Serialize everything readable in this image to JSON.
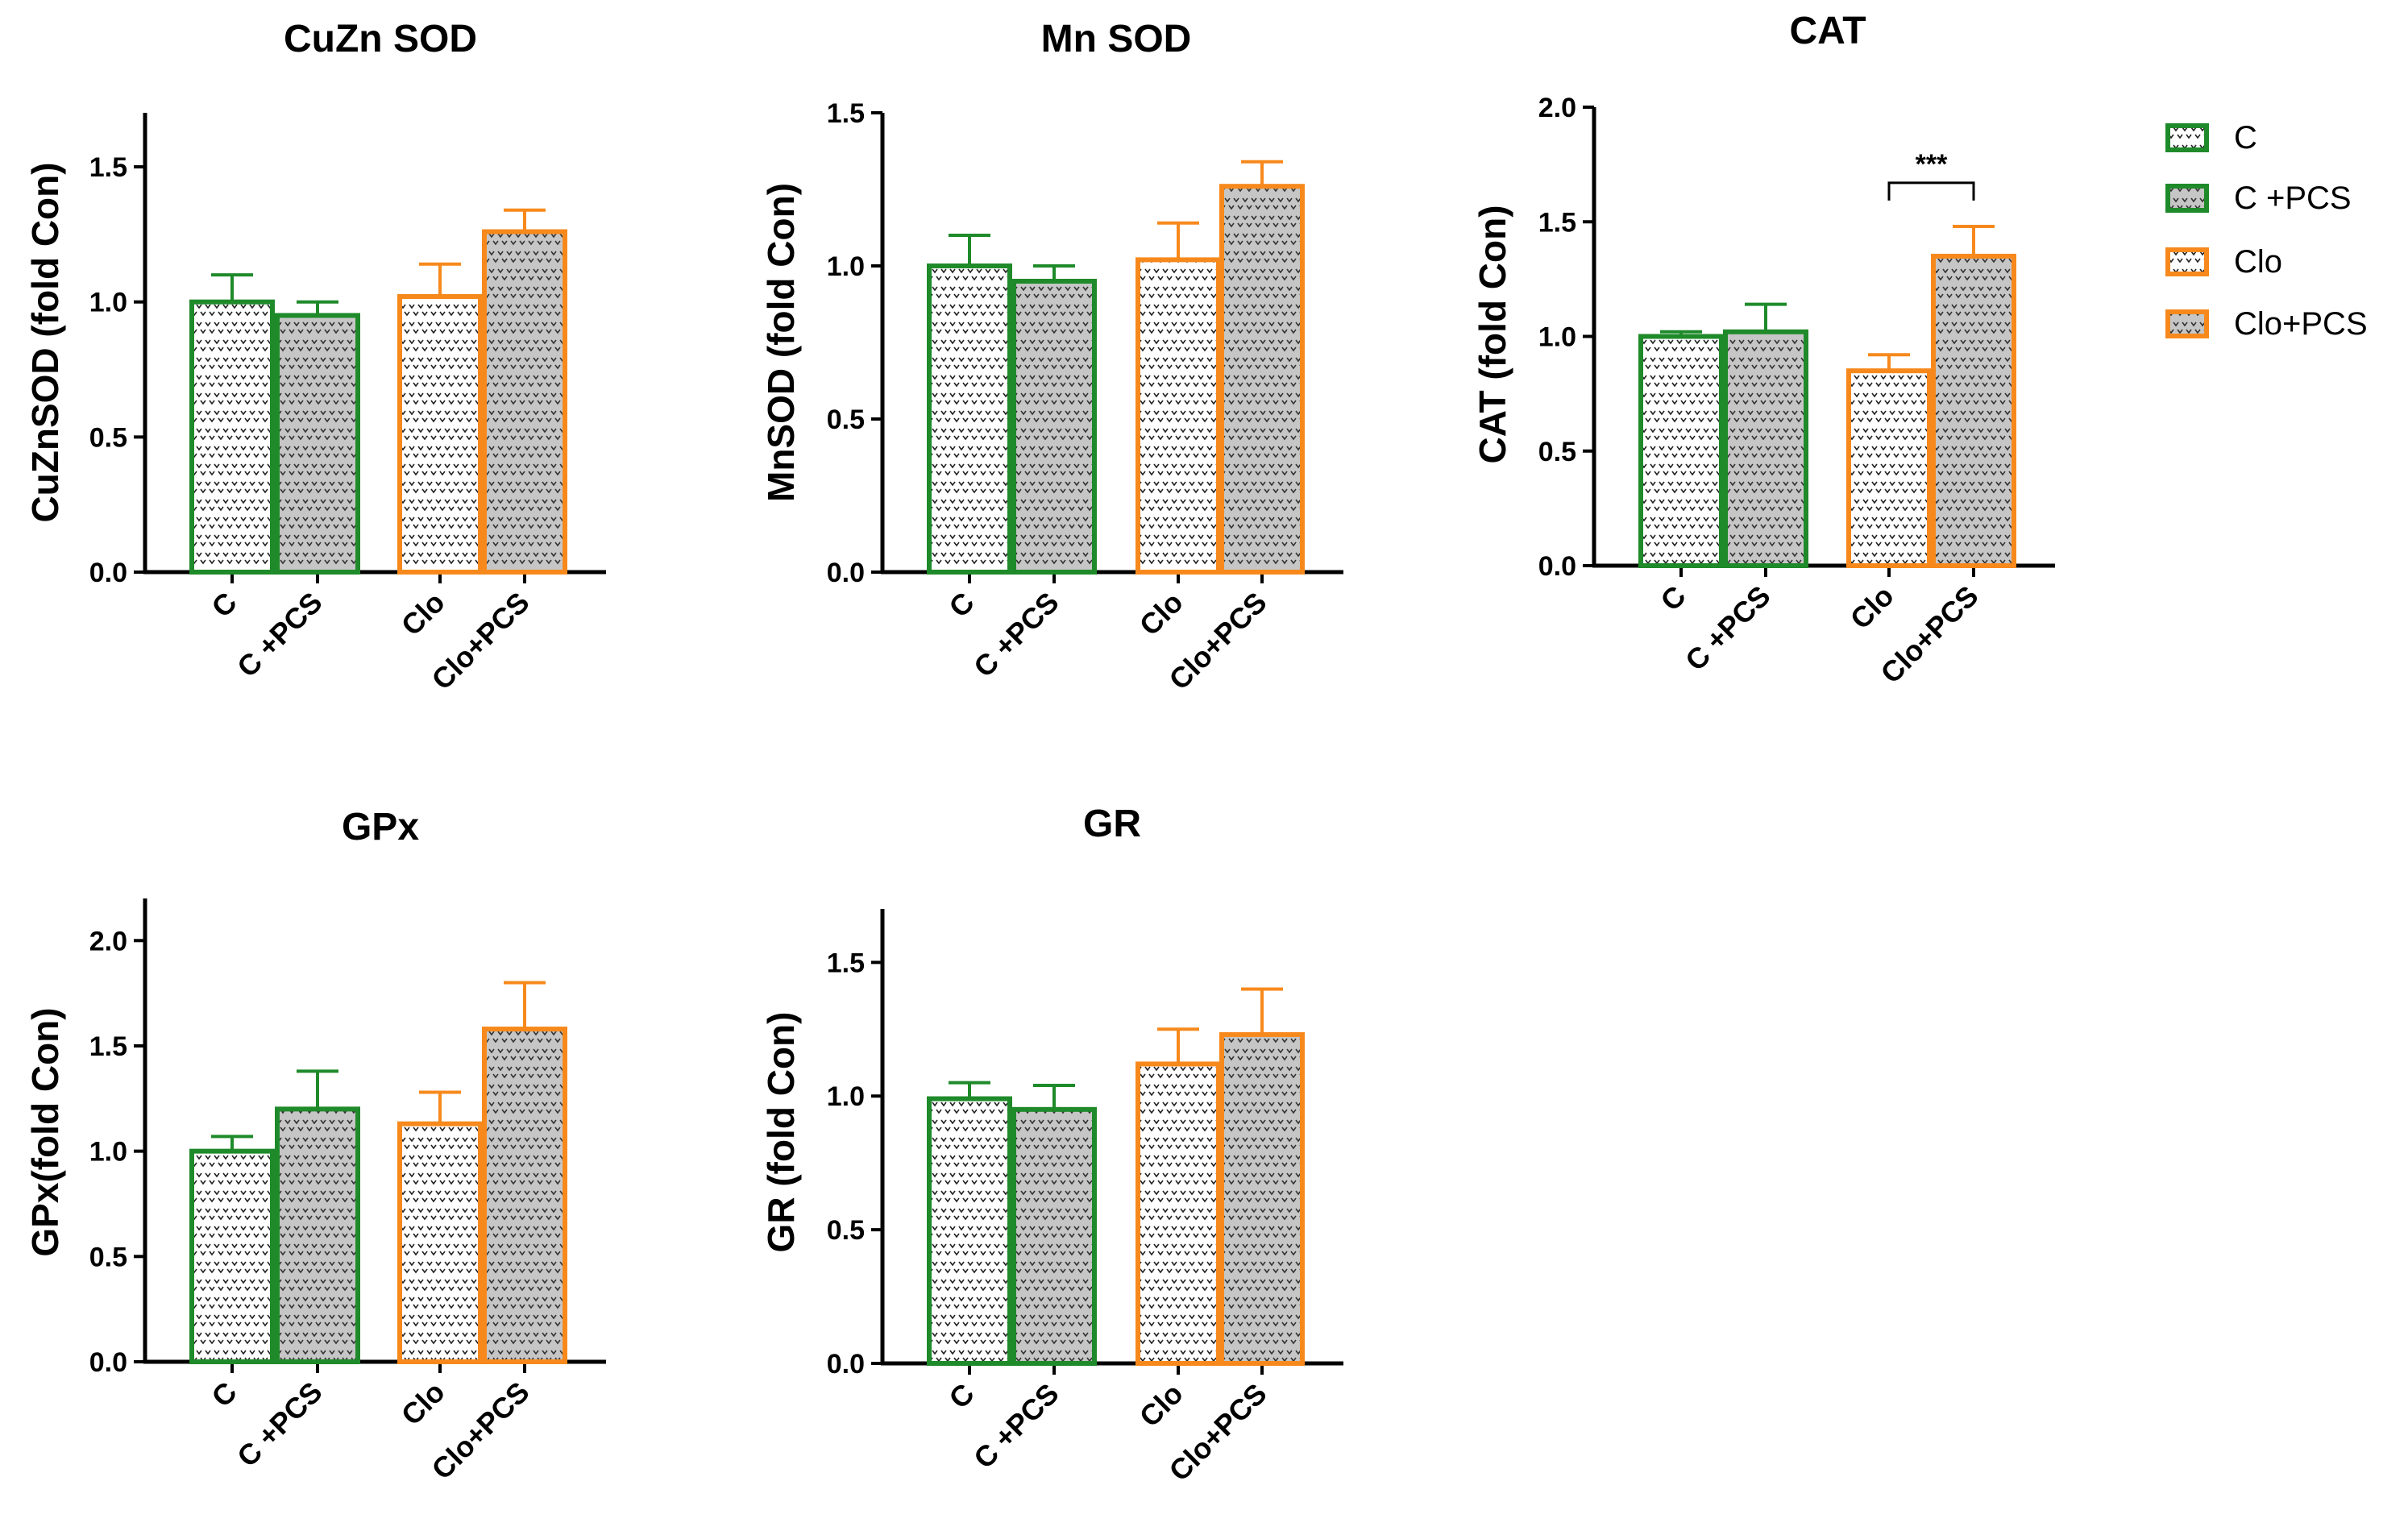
{
  "colors": {
    "control": "#1f8a2a",
    "clo": "#f7891c",
    "pcs_fill": "#c6c6c6",
    "plain_fill": "#ffffff",
    "axis": "#000000"
  },
  "legend": {
    "items": [
      {
        "label": "C",
        "group": "control",
        "pattern": "plain"
      },
      {
        "label": "C +PCS",
        "group": "control",
        "pattern": "pcs"
      },
      {
        "label": "Clo",
        "group": "clo",
        "pattern": "plain"
      },
      {
        "label": "Clo+PCS",
        "group": "clo",
        "pattern": "pcs"
      }
    ]
  },
  "chart_data": [
    {
      "type": "bar",
      "title": "CuZn SOD",
      "ylabel": "CuZnSOD (fold Con)",
      "ylim": [
        0,
        1.7
      ],
      "yticks": [
        0.0,
        0.5,
        1.0,
        1.5
      ],
      "ytick_labels": [
        "0.0",
        "0.5",
        "1.0",
        "1.5"
      ],
      "categories": [
        "C",
        "C +PCS",
        "Clo",
        "Clo+PCS"
      ],
      "values": [
        1.0,
        0.95,
        1.02,
        1.26
      ],
      "errors": [
        0.1,
        0.05,
        0.12,
        0.08
      ],
      "significance": null
    },
    {
      "type": "bar",
      "title": "Mn SOD",
      "ylabel": "MnSOD (fold Con)",
      "ylim": [
        0,
        1.5
      ],
      "yticks": [
        0.0,
        0.5,
        1.0,
        1.5
      ],
      "ytick_labels": [
        "0.0",
        "0.5",
        "1.0",
        "1.5"
      ],
      "categories": [
        "C",
        "C +PCS",
        "Clo",
        "Clo+PCS"
      ],
      "values": [
        1.0,
        0.95,
        1.02,
        1.26
      ],
      "errors": [
        0.1,
        0.05,
        0.12,
        0.08
      ],
      "significance": null
    },
    {
      "type": "bar",
      "title": "CAT",
      "ylabel": "CAT (fold Con)",
      "ylim": [
        0,
        2.0
      ],
      "yticks": [
        0.0,
        0.5,
        1.0,
        1.5,
        2.0
      ],
      "ytick_labels": [
        "0.0",
        "0.5",
        "1.0",
        "1.5",
        "2.0"
      ],
      "categories": [
        "C",
        "C +PCS",
        "Clo",
        "Clo+PCS"
      ],
      "values": [
        1.0,
        1.02,
        0.85,
        1.35
      ],
      "errors": [
        0.02,
        0.12,
        0.07,
        0.13
      ],
      "significance": {
        "from": 2,
        "to": 3,
        "label": "***",
        "y": 1.67
      }
    },
    {
      "type": "bar",
      "title": "GPx",
      "ylabel": "GPx(fold Con)",
      "ylim": [
        0,
        2.2
      ],
      "yticks": [
        0.0,
        0.5,
        1.0,
        1.5,
        2.0
      ],
      "ytick_labels": [
        "0.0",
        "0.5",
        "1.0",
        "1.5",
        "2.0"
      ],
      "categories": [
        "C",
        "C +PCS",
        "Clo",
        "Clo+PCS"
      ],
      "values": [
        1.0,
        1.2,
        1.13,
        1.58
      ],
      "errors": [
        0.07,
        0.18,
        0.15,
        0.22
      ],
      "significance": null
    },
    {
      "type": "bar",
      "title": "GR",
      "ylabel": "GR (fold Con)",
      "ylim": [
        0,
        1.7
      ],
      "yticks": [
        0.0,
        0.5,
        1.0,
        1.5
      ],
      "ytick_labels": [
        "0.0",
        "0.5",
        "1.0",
        "1.5"
      ],
      "categories": [
        "C",
        "C +PCS",
        "Clo",
        "Clo+PCS"
      ],
      "values": [
        0.99,
        0.95,
        1.12,
        1.23
      ],
      "errors": [
        0.06,
        0.09,
        0.13,
        0.17
      ],
      "significance": null
    }
  ]
}
